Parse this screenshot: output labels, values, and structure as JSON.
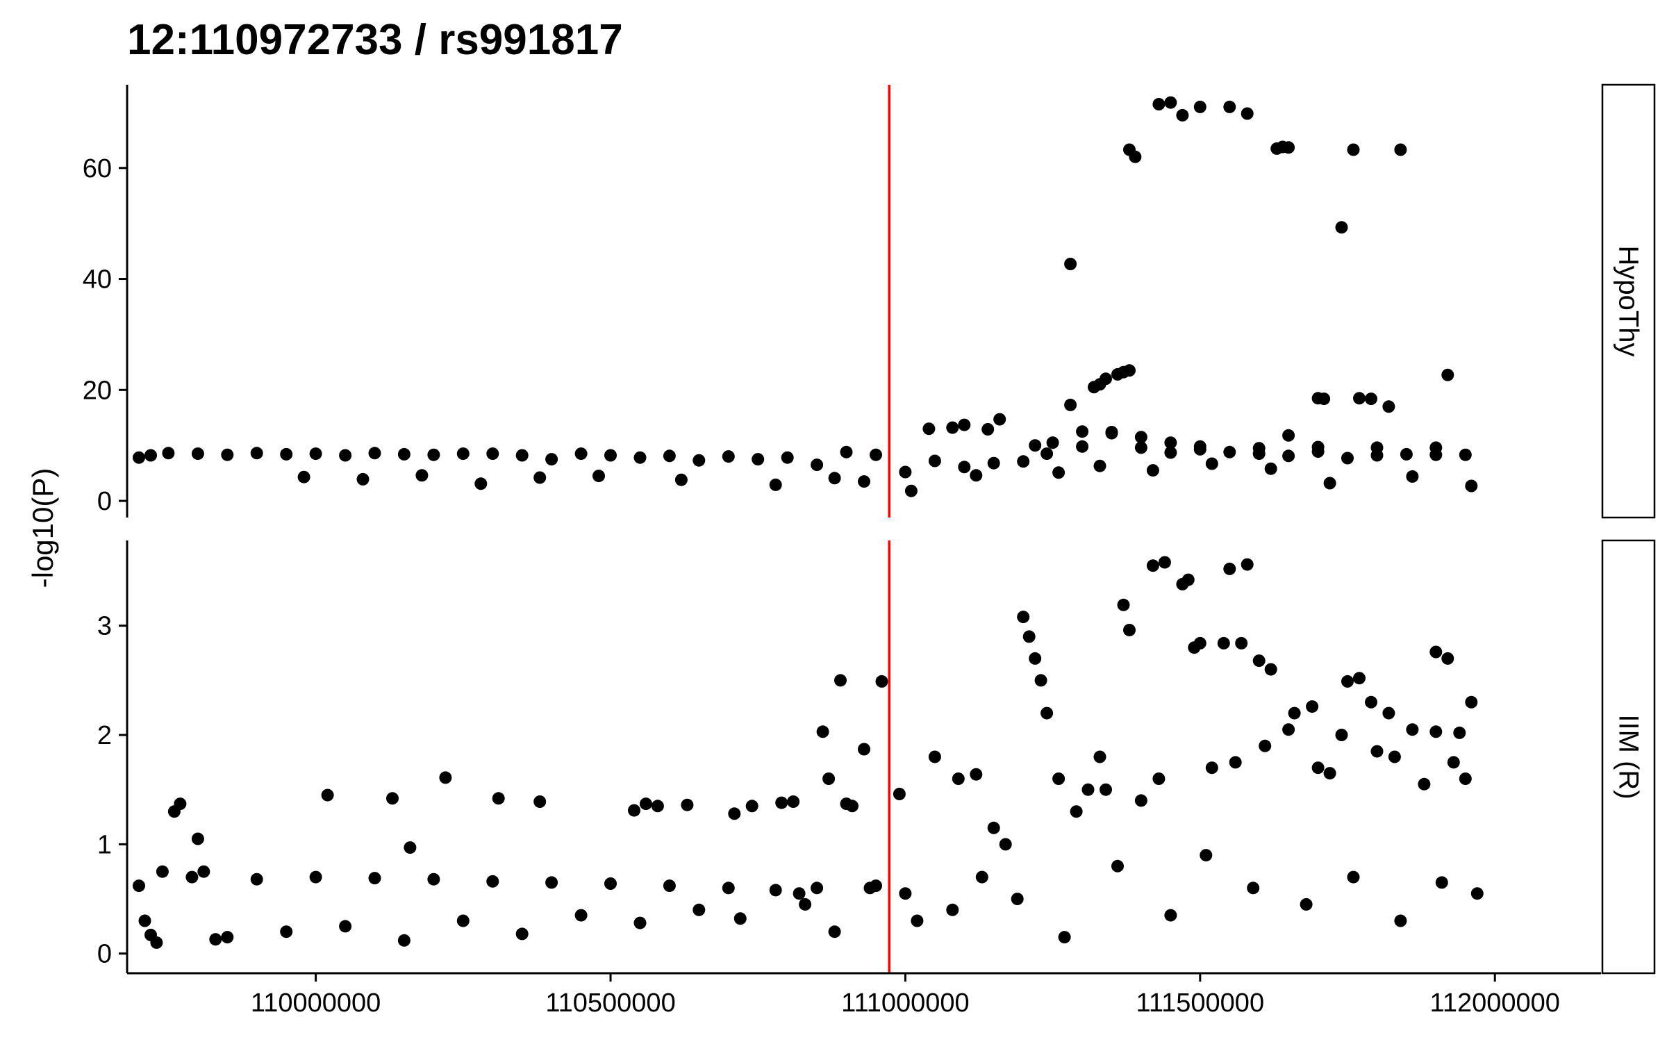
{
  "chart_data": {
    "type": "scatter",
    "title": "12:110972733 / rs991817",
    "xlabel": "",
    "ylabel": "-log10(P)",
    "marker_position": 110972733,
    "marker_color": "#ff0000",
    "point_color": "#000000",
    "grid": false,
    "xlim": [
      109680000,
      112180000
    ],
    "x_ticks": [
      110000000,
      110500000,
      111000000,
      111500000,
      112000000
    ],
    "x_tick_labels": [
      "110000000",
      "110500000",
      "111000000",
      "111500000",
      "112000000"
    ],
    "panels": [
      {
        "name": "HypoThy",
        "ylim": [
          -3,
          75
        ],
        "y_ticks": [
          0,
          20,
          40,
          60
        ],
        "y_tick_labels": [
          "0",
          "20",
          "40",
          "60"
        ],
        "x": [
          111430000,
          111450000,
          111470000,
          111500000,
          111550000,
          111580000,
          111380000,
          111390000,
          111630000,
          111640000,
          111650000,
          111760000,
          111840000,
          111740000,
          111280000,
          111330000,
          111340000,
          111360000,
          111370000,
          111380000,
          111280000,
          111320000,
          111700000,
          111710000,
          111770000,
          111790000,
          111820000,
          111920000,
          111040000,
          111080000,
          111100000,
          111140000,
          111160000,
          111220000,
          111240000,
          111300000,
          111350000,
          111400000,
          111450000,
          111500000,
          111600000,
          111650000,
          111700000,
          111800000,
          111900000,
          109700000,
          109720000,
          109750000,
          109800000,
          109850000,
          109900000,
          109950000,
          110000000,
          110050000,
          110100000,
          110150000,
          110200000,
          110250000,
          110300000,
          110350000,
          110400000,
          110450000,
          110500000,
          110550000,
          110600000,
          110650000,
          110700000,
          110750000,
          110800000,
          110850000,
          110900000,
          110950000,
          111000000,
          111050000,
          111100000,
          111150000,
          111200000,
          111250000,
          111300000,
          111350000,
          111400000,
          111450000,
          111500000,
          111550000,
          111600000,
          111650000,
          111700000,
          111750000,
          111800000,
          111850000,
          111900000,
          111950000,
          109980000,
          110080000,
          110180000,
          110280000,
          110380000,
          110480000,
          110620000,
          110780000,
          110880000,
          110930000,
          111010000,
          111120000,
          111260000,
          111330000,
          111420000,
          111520000,
          111620000,
          111720000,
          111860000,
          111960000
        ],
        "y": [
          71.5,
          71.8,
          69.5,
          71,
          71,
          69.8,
          63.3,
          62,
          63.5,
          63.8,
          63.7,
          63.3,
          63.3,
          49.3,
          42.7,
          21,
          22,
          22.8,
          23.2,
          23.5,
          17.3,
          20.5,
          18.5,
          18.4,
          18.5,
          18.4,
          17,
          22.7,
          13,
          13.2,
          13.7,
          12.9,
          14.7,
          10,
          8.5,
          12.5,
          12.2,
          11.5,
          10.5,
          9.8,
          9.5,
          11.8,
          9.7,
          9.6,
          9.6,
          7.8,
          8.2,
          8.6,
          8.5,
          8.3,
          8.6,
          8.4,
          8.5,
          8.2,
          8.6,
          8.4,
          8.3,
          8.5,
          8.5,
          8.2,
          7.5,
          8.5,
          8.2,
          7.8,
          8.1,
          7.3,
          8,
          7.5,
          7.8,
          6.5,
          8.8,
          8.3,
          5.2,
          7.2,
          6.1,
          6.8,
          7.1,
          10.5,
          9.8,
          12.4,
          9.6,
          8.7,
          9.3,
          8.8,
          8.5,
          8.1,
          8.9,
          7.7,
          8.2,
          8.4,
          8.3,
          8.3,
          4.3,
          3.9,
          4.6,
          3.1,
          4.2,
          4.5,
          3.8,
          2.9,
          4.1,
          3.5,
          1.8,
          4.6,
          5.1,
          6.3,
          5.5,
          6.7,
          5.8,
          3.2,
          4.4,
          2.7
        ]
      },
      {
        "name": "IIM (R)",
        "ylim": [
          -0.18,
          3.78
        ],
        "y_ticks": [
          0,
          1,
          2,
          3
        ],
        "y_tick_labels": [
          "0",
          "1",
          "2",
          "3"
        ],
        "x": [
          111420000,
          111440000,
          111470000,
          111480000,
          111550000,
          111580000,
          111370000,
          111380000,
          111200000,
          111210000,
          111220000,
          111230000,
          111240000,
          110890000,
          110960000,
          110860000,
          110930000,
          110990000,
          111050000,
          111090000,
          111120000,
          111310000,
          111330000,
          111490000,
          111500000,
          111540000,
          111570000,
          111600000,
          111620000,
          111750000,
          111770000,
          111900000,
          111920000,
          111960000,
          111660000,
          111690000,
          111740000,
          111790000,
          111820000,
          111860000,
          111900000,
          111940000,
          109700000,
          109710000,
          109720000,
          109740000,
          109760000,
          109770000,
          109800000,
          109810000,
          109830000,
          110020000,
          110130000,
          110160000,
          110220000,
          110310000,
          110380000,
          110540000,
          110560000,
          110580000,
          110630000,
          110710000,
          110740000,
          110790000,
          110810000,
          110870000,
          110900000,
          110910000,
          109790000,
          109900000,
          110000000,
          110100000,
          110200000,
          110300000,
          110400000,
          110500000,
          110600000,
          110700000,
          110780000,
          110820000,
          110850000,
          110950000,
          111000000,
          111150000,
          111170000,
          111260000,
          111290000,
          111340000,
          111400000,
          111430000,
          111520000,
          111560000,
          111610000,
          111650000,
          111700000,
          111720000,
          111800000,
          111830000,
          111880000,
          111930000,
          111950000,
          109730000,
          109850000,
          109950000,
          110050000,
          110150000,
          110250000,
          110350000,
          110450000,
          110550000,
          110650000,
          110720000,
          110830000,
          110880000,
          110940000,
          111020000,
          111080000,
          111130000,
          111190000,
          111270000,
          111360000,
          111450000,
          111510000,
          111590000,
          111680000,
          111760000,
          111840000,
          111910000,
          111970000
        ],
        "y": [
          3.55,
          3.58,
          3.38,
          3.42,
          3.52,
          3.56,
          3.19,
          2.96,
          3.08,
          2.9,
          2.7,
          2.5,
          2.2,
          2.5,
          2.49,
          2.03,
          1.87,
          1.46,
          1.8,
          1.6,
          1.64,
          1.5,
          1.8,
          2.8,
          2.84,
          2.84,
          2.84,
          2.68,
          2.6,
          2.49,
          2.52,
          2.76,
          2.7,
          2.3,
          2.2,
          2.26,
          2.0,
          2.3,
          2.2,
          2.05,
          2.03,
          2.02,
          0.62,
          0.3,
          0.17,
          0.75,
          1.3,
          1.37,
          1.05,
          0.75,
          0.13,
          1.45,
          1.42,
          0.97,
          1.61,
          1.42,
          1.39,
          1.31,
          1.37,
          1.35,
          1.36,
          1.28,
          1.35,
          1.38,
          1.39,
          1.6,
          1.37,
          1.35,
          0.7,
          0.68,
          0.7,
          0.69,
          0.68,
          0.66,
          0.65,
          0.64,
          0.62,
          0.6,
          0.58,
          0.55,
          0.6,
          0.62,
          0.55,
          1.15,
          1.0,
          1.6,
          1.3,
          1.5,
          1.4,
          1.6,
          1.7,
          1.75,
          1.9,
          2.05,
          1.7,
          1.65,
          1.85,
          1.8,
          1.55,
          1.75,
          1.6,
          0.1,
          0.15,
          0.2,
          0.25,
          0.12,
          0.3,
          0.18,
          0.35,
          0.28,
          0.4,
          0.32,
          0.45,
          0.2,
          0.6,
          0.3,
          0.4,
          0.7,
          0.5,
          0.15,
          0.8,
          0.35,
          0.9,
          0.6,
          0.45,
          0.7,
          0.3,
          0.65,
          0.55
        ]
      }
    ]
  }
}
